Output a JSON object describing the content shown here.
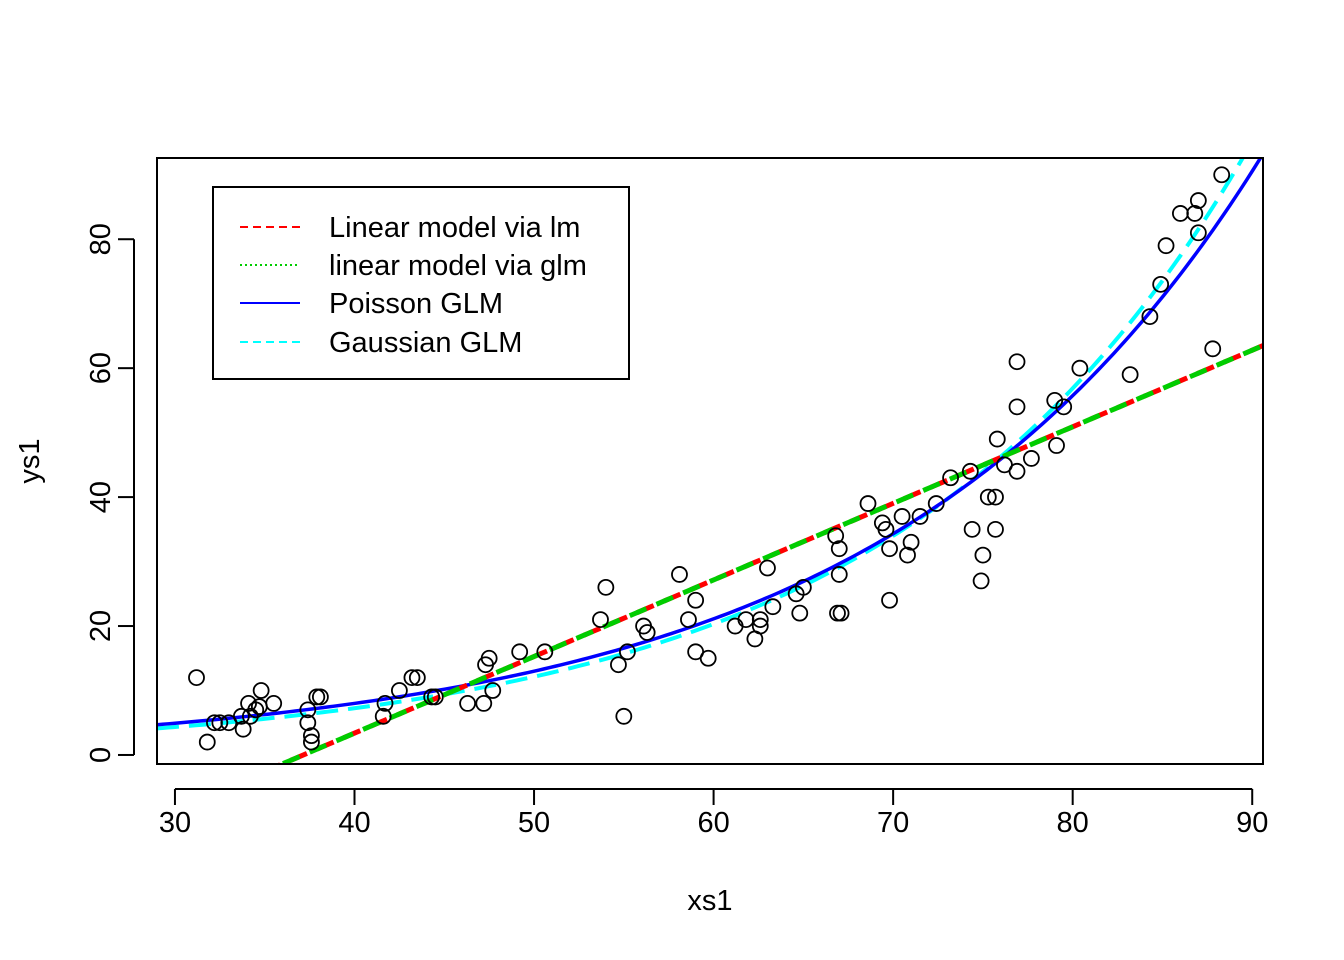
{
  "chart_data": {
    "type": "scatter",
    "title": "",
    "xlabel": "xs1",
    "ylabel": "ys1",
    "xlim": [
      29,
      90.6
    ],
    "ylim": [
      -1.4,
      92.6
    ],
    "x_ticks": [
      30,
      40,
      50,
      60,
      70,
      80,
      90
    ],
    "y_ticks": [
      0,
      20,
      40,
      60,
      80
    ],
    "x_tick_labels": [
      "30",
      "40",
      "50",
      "60",
      "70",
      "80",
      "90"
    ],
    "y_tick_labels": [
      "0",
      "20",
      "40",
      "60",
      "80"
    ],
    "grid": false,
    "legend_position": "top-left",
    "points": [
      [
        31.2,
        12
      ],
      [
        31.8,
        2
      ],
      [
        32.2,
        5
      ],
      [
        32.5,
        5
      ],
      [
        33.0,
        5
      ],
      [
        33.7,
        6
      ],
      [
        33.8,
        4
      ],
      [
        34.1,
        8
      ],
      [
        34.2,
        6
      ],
      [
        34.5,
        7
      ],
      [
        34.7,
        7.5
      ],
      [
        34.8,
        10
      ],
      [
        35.5,
        8
      ],
      [
        37.4,
        7
      ],
      [
        37.4,
        5
      ],
      [
        37.6,
        2
      ],
      [
        37.6,
        3
      ],
      [
        37.9,
        9
      ],
      [
        38.1,
        9
      ],
      [
        41.6,
        6
      ],
      [
        41.7,
        8
      ],
      [
        42.5,
        10
      ],
      [
        43.2,
        12
      ],
      [
        43.5,
        12
      ],
      [
        44.3,
        9
      ],
      [
        44.5,
        9
      ],
      [
        46.3,
        8
      ],
      [
        47.2,
        8
      ],
      [
        47.3,
        14
      ],
      [
        47.5,
        15
      ],
      [
        47.7,
        10
      ],
      [
        49.2,
        16
      ],
      [
        50.6,
        16
      ],
      [
        53.7,
        21
      ],
      [
        54.0,
        26
      ],
      [
        54.7,
        14
      ],
      [
        55.0,
        6
      ],
      [
        55.2,
        16
      ],
      [
        56.1,
        20
      ],
      [
        56.3,
        19
      ],
      [
        58.1,
        28
      ],
      [
        58.6,
        21
      ],
      [
        59.0,
        24
      ],
      [
        59.0,
        16
      ],
      [
        59.7,
        15
      ],
      [
        61.2,
        20
      ],
      [
        61.8,
        21
      ],
      [
        62.3,
        18
      ],
      [
        62.6,
        21
      ],
      [
        62.6,
        20
      ],
      [
        63.0,
        29
      ],
      [
        63.3,
        23
      ],
      [
        64.6,
        25
      ],
      [
        64.8,
        22
      ],
      [
        65.0,
        26
      ],
      [
        66.8,
        34
      ],
      [
        66.9,
        22
      ],
      [
        67.0,
        32
      ],
      [
        67.0,
        28
      ],
      [
        67.1,
        22
      ],
      [
        68.6,
        39
      ],
      [
        69.4,
        36
      ],
      [
        69.6,
        35
      ],
      [
        69.8,
        32
      ],
      [
        69.8,
        24
      ],
      [
        70.5,
        37
      ],
      [
        70.8,
        31
      ],
      [
        71.0,
        33
      ],
      [
        71.5,
        37
      ],
      [
        72.4,
        39
      ],
      [
        73.2,
        43
      ],
      [
        74.3,
        44
      ],
      [
        74.4,
        35
      ],
      [
        74.9,
        27
      ],
      [
        75.0,
        31
      ],
      [
        75.3,
        40
      ],
      [
        75.7,
        40
      ],
      [
        75.7,
        35
      ],
      [
        75.8,
        49
      ],
      [
        76.2,
        45
      ],
      [
        76.9,
        61
      ],
      [
        76.9,
        54
      ],
      [
        76.9,
        44
      ],
      [
        77.7,
        46
      ],
      [
        79.0,
        55
      ],
      [
        79.1,
        48
      ],
      [
        79.5,
        54
      ],
      [
        80.4,
        60
      ],
      [
        83.2,
        59
      ],
      [
        84.3,
        68
      ],
      [
        84.9,
        73
      ],
      [
        85.2,
        79
      ],
      [
        86.0,
        84
      ],
      [
        86.8,
        84
      ],
      [
        87.0,
        86
      ],
      [
        87.0,
        81
      ],
      [
        87.8,
        63
      ],
      [
        88.3,
        90
      ]
    ],
    "series": [
      {
        "name": "Linear model via lm",
        "model": "linear",
        "params": {
          "slope": 1.188,
          "intercept": -44.13
        },
        "color": "#ff0000",
        "dash": "dashed"
      },
      {
        "name": "linear model via glm",
        "model": "linear",
        "params": {
          "slope": 1.188,
          "intercept": -44.13
        },
        "color": "#00cd00",
        "dash": "dotted"
      },
      {
        "name": "Poisson GLM",
        "model": "exp",
        "params": {
          "a": 4.691,
          "k": 0.04853,
          "x0": 29
        },
        "color": "#0000ff",
        "dash": "solid"
      },
      {
        "name": "Gaussian GLM",
        "model": "exp",
        "params": {
          "a": 4.12,
          "k": 0.05147,
          "x0": 29
        },
        "color": "#00ffff",
        "dash": "dashed"
      }
    ]
  }
}
